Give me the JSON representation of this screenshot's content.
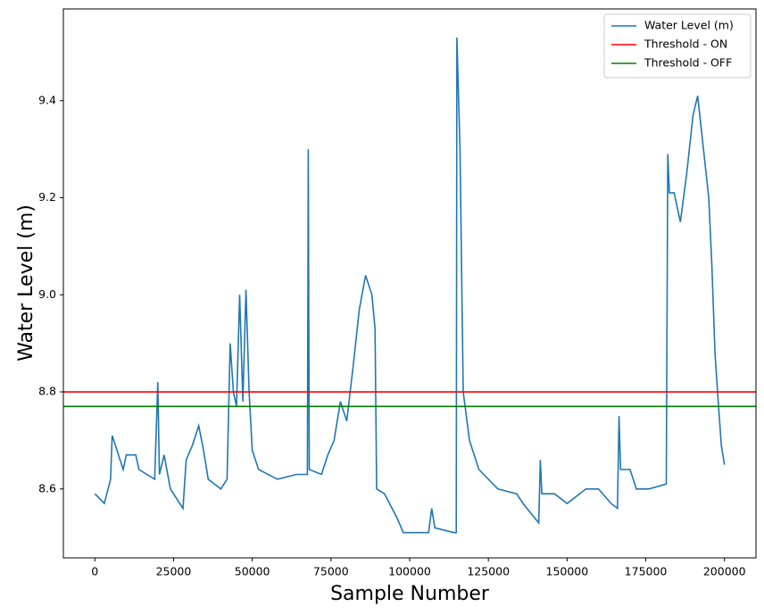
{
  "chart_data": {
    "type": "line",
    "xlabel": "Sample Number",
    "ylabel": "Water Level (m)",
    "xlim": [
      -10000,
      210000
    ],
    "ylim": [
      8.458,
      9.589
    ],
    "xticks": [
      0,
      25000,
      50000,
      75000,
      100000,
      125000,
      150000,
      175000,
      200000
    ],
    "yticks": [
      8.6,
      8.8,
      {
        "value": 9,
        "label": "9.0"
      },
      9.2,
      9.4
    ],
    "legend": "upper right",
    "x": [
      0,
      3000,
      5000,
      5500,
      7000,
      9000,
      10000,
      13000,
      14000,
      19000,
      20000,
      20500,
      22000,
      24000,
      28000,
      29000,
      31000,
      33000,
      34500,
      36000,
      40000,
      42000,
      43000,
      44000,
      45000,
      46000,
      47000,
      48000,
      49000,
      50000,
      52000,
      58000,
      64000,
      67500,
      67800,
      68100,
      72000,
      74000,
      76000,
      78000,
      80000,
      82000,
      84000,
      86000,
      88000,
      89000,
      89500,
      92000,
      96000,
      98000,
      106000,
      107000,
      108000,
      114000,
      114800,
      115000,
      116000,
      117000,
      119000,
      122000,
      128000,
      134000,
      136000,
      141000,
      141500,
      142000,
      146000,
      150000,
      156000,
      160000,
      164000,
      166000,
      166500,
      167000,
      170000,
      172000,
      176000,
      181500,
      182000,
      182500,
      184000,
      186000,
      188000,
      190000,
      191500,
      193000,
      195000,
      196000,
      197000,
      198000,
      199000,
      200000
    ],
    "series": [
      {
        "name": "Water Level (m)",
        "color": "#1f77b4",
        "values": [
          8.59,
          8.57,
          8.62,
          8.71,
          8.68,
          8.64,
          8.67,
          8.67,
          8.64,
          8.62,
          8.82,
          8.63,
          8.67,
          8.6,
          8.56,
          8.66,
          8.69,
          8.73,
          8.68,
          8.62,
          8.6,
          8.62,
          8.9,
          8.8,
          8.77,
          9.0,
          8.78,
          9.01,
          8.8,
          8.68,
          8.64,
          8.62,
          8.63,
          8.63,
          9.3,
          8.64,
          8.63,
          8.67,
          8.7,
          8.78,
          8.74,
          8.85,
          8.97,
          9.04,
          9.0,
          8.93,
          8.6,
          8.59,
          8.54,
          8.51,
          8.51,
          8.56,
          8.52,
          8.51,
          8.51,
          9.53,
          9.3,
          8.8,
          8.7,
          8.64,
          8.6,
          8.59,
          8.57,
          8.53,
          8.66,
          8.59,
          8.59,
          8.57,
          8.6,
          8.6,
          8.57,
          8.56,
          8.75,
          8.64,
          8.64,
          8.6,
          8.6,
          8.61,
          9.29,
          9.21,
          9.21,
          9.15,
          9.25,
          9.37,
          9.41,
          9.32,
          9.2,
          9.06,
          8.88,
          8.78,
          8.69,
          8.65
        ]
      }
    ],
    "hlines": [
      {
        "name": "Threshold - ON",
        "color": "#ff0000",
        "value": 8.8
      },
      {
        "name": "Threshold - OFF",
        "color": "#008000",
        "value": 8.77
      }
    ]
  }
}
